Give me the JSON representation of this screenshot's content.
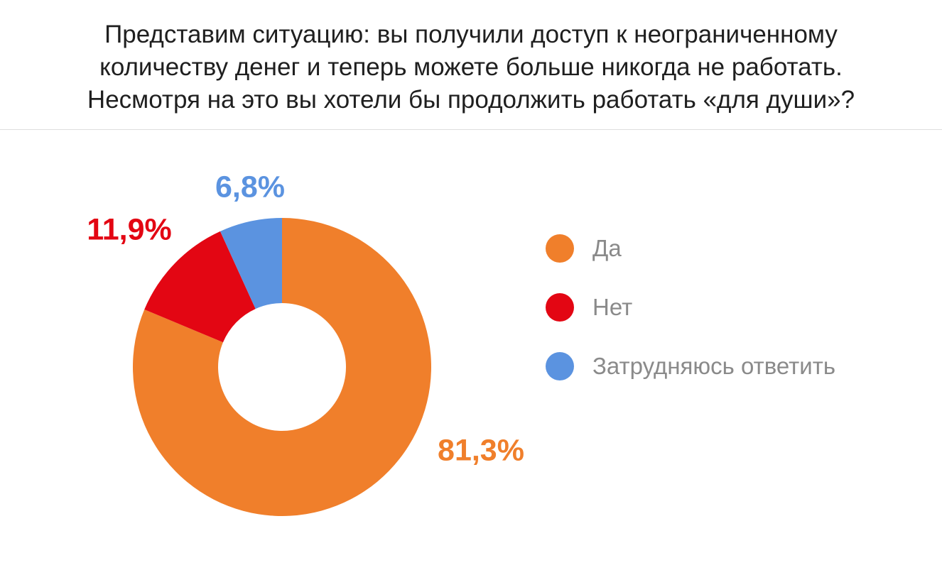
{
  "chart_data": {
    "type": "pie",
    "title_lines": [
      "Представим ситуацию: вы получили доступ к неограниченному",
      "количеству денег и теперь можете больше никогда не работать.",
      "Несмотря на это вы хотели бы продолжить работать «для души»?"
    ],
    "variant": "donut",
    "legend_position": "right",
    "slices": [
      {
        "label": "Да",
        "value": 81.3,
        "value_label": "81,3%",
        "color": "#f07f2b"
      },
      {
        "label": "Нет",
        "value": 11.9,
        "value_label": "11,9%",
        "color": "#e30613"
      },
      {
        "label": "Затрудняюсь ответить",
        "value": 6.8,
        "value_label": "6,8%",
        "color": "#5b93e0"
      }
    ]
  }
}
